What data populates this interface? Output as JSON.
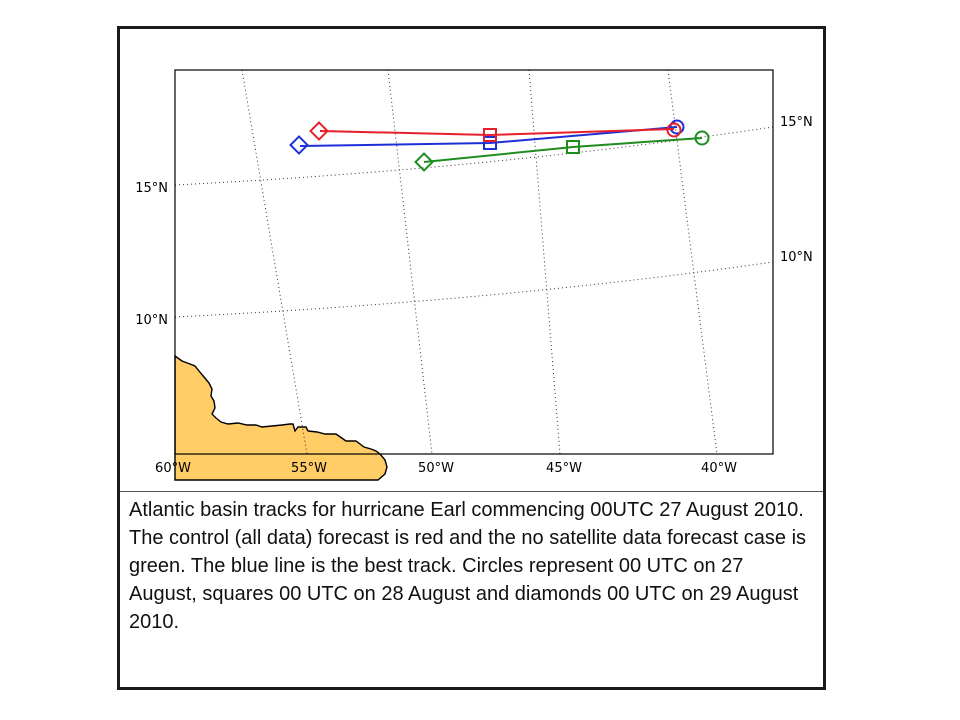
{
  "map": {
    "colors": {
      "land": "#ffcc66",
      "coastline": "#000000",
      "graticule": "#333333",
      "control_forecast": "#e8202a",
      "no_satellite_forecast": "#1f8c1f",
      "best_track": "#1f2fd8"
    },
    "longitude_labels": [
      "60°W",
      "55°W",
      "50°W",
      "45°W",
      "40°W"
    ],
    "latitude_labels_left": [
      "15°N",
      "10°N"
    ],
    "latitude_labels_right": [
      "15°N",
      "10°N"
    ],
    "tracks": [
      {
        "name": "control forecast (all data)",
        "color_key": "control_forecast",
        "positions": [
          "00 UTC 27 August",
          "00 UTC 28 August",
          "00 UTC 29 August"
        ]
      },
      {
        "name": "no satellite data forecast",
        "color_key": "no_satellite_forecast",
        "positions": [
          "00 UTC 27 August",
          "00 UTC 28 August",
          "00 UTC 29 August"
        ]
      },
      {
        "name": "best track",
        "color_key": "best_track",
        "positions": [
          "00 UTC 27 August",
          "00 UTC 28 August",
          "00 UTC 29 August"
        ]
      }
    ],
    "marker_legend": {
      "circle": "00 UTC on 27 August",
      "square": "00 UTC on 28 August",
      "diamond": "00 UTC on 29 August 2010"
    }
  },
  "caption": "Atlantic basin tracks for hurricane Earl commencing 00UTC 27 August 2010. The control (all data) forecast is red and the no satellite data forecast case is green. The blue line is the best track. Circles represent 00 UTC on 27 August, squares 00 UTC on 28 August and diamonds 00 UTC on 29 August 2010."
}
